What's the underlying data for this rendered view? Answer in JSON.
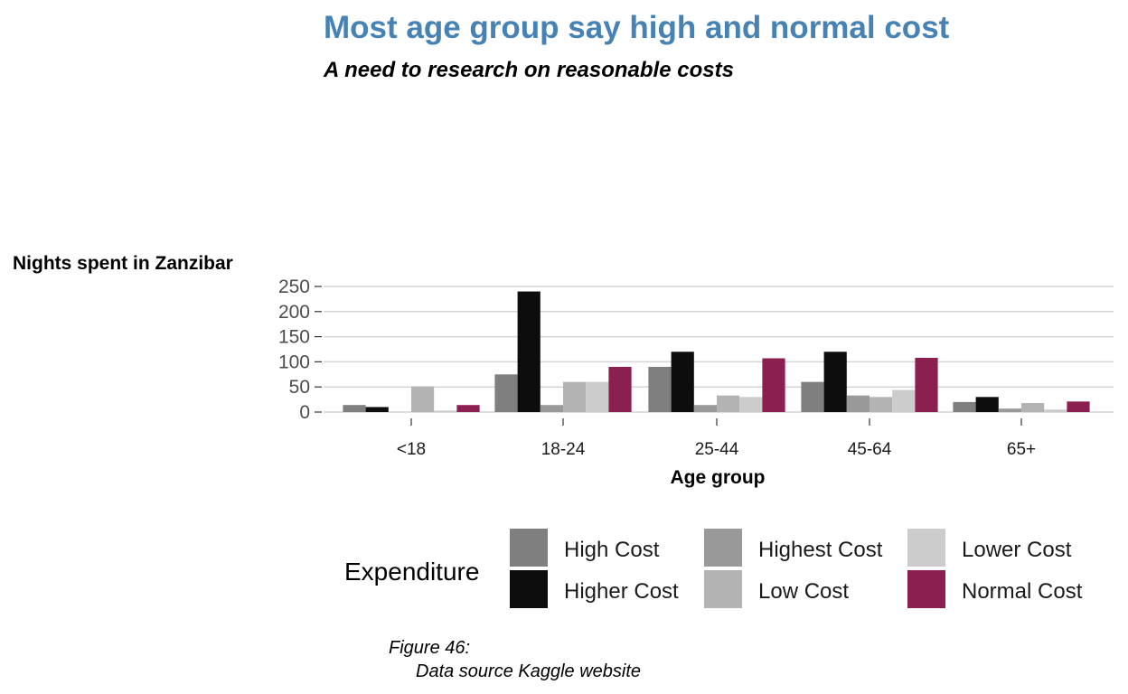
{
  "chart_data": {
    "type": "bar",
    "title": "Most age group say high and normal cost",
    "subtitle": "A need to research on reasonable costs",
    "xlabel": "Age group",
    "ylabel": "Nights spent in Zanzibar",
    "ylim": [
      0,
      250
    ],
    "yticks": [
      0,
      50,
      100,
      150,
      200,
      250
    ],
    "grid": true,
    "legend_title": "Expenditure",
    "legend_position": "bottom",
    "categories": [
      "<18",
      "18-24",
      "25-44",
      "45-64",
      "65+"
    ],
    "series": [
      {
        "name": "High Cost",
        "color": "#7f7f7f",
        "values": [
          14,
          75,
          90,
          60,
          20
        ]
      },
      {
        "name": "Higher Cost",
        "color": "#0d0d0d",
        "values": [
          10,
          240,
          120,
          120,
          30
        ]
      },
      {
        "name": "Highest Cost",
        "color": "#999999",
        "values": [
          0,
          14,
          14,
          33,
          7
        ]
      },
      {
        "name": "Low Cost",
        "color": "#b3b3b3",
        "values": [
          51,
          60,
          33,
          30,
          18
        ]
      },
      {
        "name": "Lower Cost",
        "color": "#cccccc",
        "values": [
          3,
          60,
          30,
          44,
          5
        ]
      },
      {
        "name": "Normal Cost",
        "color": "#8b1f4f",
        "values": [
          14,
          90,
          107,
          108,
          21
        ]
      }
    ],
    "title_color": "#4682b4",
    "caption_line1": "Figure 46:",
    "caption_line2": "Data source Kaggle website"
  }
}
